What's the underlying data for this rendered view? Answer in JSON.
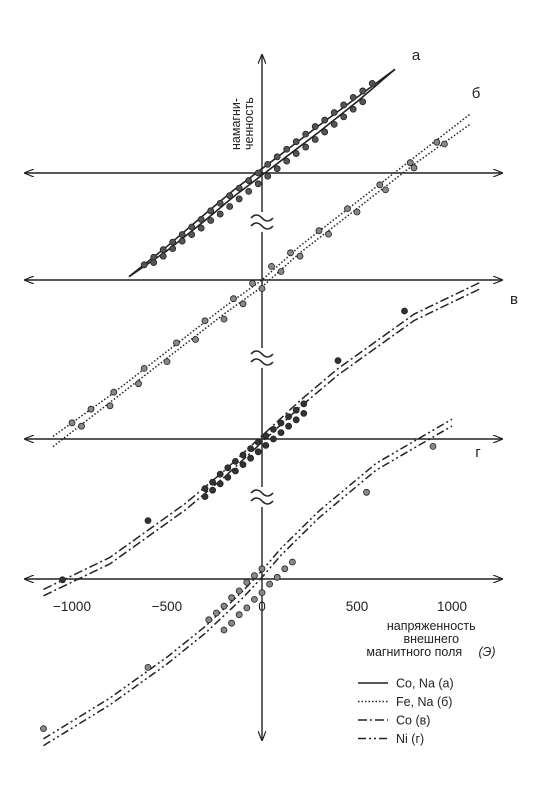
{
  "chart_data": {
    "type": "line",
    "title": "",
    "xlabel_lines": [
      "напряженность",
      "внешнего",
      "магнитного поля"
    ],
    "xlabel_unit": "(Э)",
    "ylabel_lines": [
      "намагни-",
      "ченность"
    ],
    "x_ticks": [
      {
        "value": -1000,
        "label": "−1000"
      },
      {
        "value": -500,
        "label": "−500"
      },
      {
        "value": 0,
        "label": "0"
      },
      {
        "value": 500,
        "label": "500"
      },
      {
        "value": 1000,
        "label": "1000"
      }
    ],
    "x_range": [
      -1150,
      1150
    ],
    "axis_breaks": 3,
    "legend_position": "bottom-right",
    "series": [
      {
        "name": "Co, Na (а)",
        "curve_label": "а",
        "style": "solid",
        "marker_color": "#555555",
        "branches": [
          {
            "x": [
              -700,
              -500,
              -300,
              -150,
              0,
              150,
              300,
              500,
              700
            ],
            "y": [
              -0.96,
              -0.68,
              -0.38,
              -0.16,
              0.04,
              0.24,
              0.44,
              0.7,
              0.96
            ]
          },
          {
            "x": [
              -700,
              -500,
              -300,
              -150,
              0,
              150,
              300,
              500,
              700
            ],
            "y": [
              -0.96,
              -0.72,
              -0.44,
              -0.22,
              -0.02,
              0.18,
              0.38,
              0.66,
              0.96
            ]
          }
        ],
        "markers": [
          {
            "x": [
              -620,
              -570,
              -520,
              -470,
              -420,
              -370,
              -320,
              -270,
              -220,
              -170,
              -120,
              -70,
              -20,
              30,
              80,
              130,
              180,
              230,
              280,
              330,
              380,
              430,
              480,
              530,
              580
            ],
            "y": [
              -0.85,
              -0.78,
              -0.71,
              -0.64,
              -0.57,
              -0.5,
              -0.43,
              -0.35,
              -0.28,
              -0.21,
              -0.14,
              -0.07,
              0.0,
              0.08,
              0.15,
              0.22,
              0.29,
              0.36,
              0.43,
              0.49,
              0.56,
              0.63,
              0.7,
              0.76,
              0.83
            ]
          },
          {
            "x": [
              -570,
              -520,
              -470,
              -420,
              -370,
              -320,
              -270,
              -220,
              -170,
              -120,
              -70,
              -20,
              30,
              80,
              130,
              180,
              230,
              280,
              330,
              380,
              430,
              480,
              530
            ],
            "y": [
              -0.83,
              -0.77,
              -0.7,
              -0.63,
              -0.57,
              -0.51,
              -0.44,
              -0.38,
              -0.31,
              -0.24,
              -0.17,
              -0.1,
              -0.03,
              0.04,
              0.11,
              0.18,
              0.24,
              0.31,
              0.38,
              0.45,
              0.52,
              0.59,
              0.66
            ]
          }
        ]
      },
      {
        "name": "Fe, Na (б)",
        "curve_label": "б",
        "style": "dotted",
        "marker_color": "#888888",
        "branches": [
          {
            "x": [
              -1100,
              -800,
              -500,
              -200,
              0,
              200,
              500,
              800,
              1100
            ],
            "y": [
              -0.92,
              -0.68,
              -0.42,
              -0.16,
              0.0,
              0.2,
              0.46,
              0.72,
              0.98
            ]
          },
          {
            "x": [
              -1100,
              -800,
              -500,
              -200,
              0,
              200,
              500,
              800,
              1100
            ],
            "y": [
              -0.98,
              -0.72,
              -0.46,
              -0.2,
              -0.04,
              0.16,
              0.42,
              0.68,
              0.92
            ]
          }
        ],
        "markers": [
          {
            "x": [
              -1000,
              -900,
              -780,
              -620,
              -450,
              -300,
              -150,
              -50,
              50,
              150,
              300,
              450,
              620,
              780,
              920
            ],
            "y": [
              -0.84,
              -0.76,
              -0.66,
              -0.52,
              -0.37,
              -0.24,
              -0.11,
              -0.02,
              0.08,
              0.16,
              0.29,
              0.42,
              0.56,
              0.69,
              0.81
            ]
          },
          {
            "x": [
              -950,
              -800,
              -650,
              -500,
              -350,
              -200,
              -100,
              0,
              100,
              200,
              350,
              500,
              650,
              800,
              960
            ],
            "y": [
              -0.86,
              -0.74,
              -0.61,
              -0.48,
              -0.35,
              -0.23,
              -0.14,
              -0.05,
              0.05,
              0.14,
              0.27,
              0.4,
              0.53,
              0.66,
              0.8
            ]
          }
        ]
      },
      {
        "name": "Co (в)",
        "curve_label": "в",
        "style": "dashdot",
        "marker_color": "#333333",
        "branches": [
          {
            "x": [
              -1150,
              -800,
              -400,
              -200,
              0,
              200,
              400,
              800,
              1150
            ],
            "y": [
              -0.98,
              -0.78,
              -0.44,
              -0.24,
              -0.02,
              0.2,
              0.4,
              0.74,
              0.94
            ]
          },
          {
            "x": [
              -1150,
              -800,
              -400,
              -200,
              0,
              200,
              400,
              800,
              1150
            ],
            "y": [
              -0.94,
              -0.74,
              -0.4,
              -0.2,
              0.02,
              0.24,
              0.44,
              0.78,
              0.98
            ]
          }
        ],
        "markers": [
          {
            "x": [
              -300,
              -260,
              -220,
              -180,
              -140,
              -100,
              -60,
              -20,
              20,
              60,
              100,
              140,
              180,
              220
            ],
            "y": [
              -0.31,
              -0.27,
              -0.22,
              -0.18,
              -0.14,
              -0.1,
              -0.06,
              -0.02,
              0.02,
              0.06,
              0.1,
              0.14,
              0.18,
              0.22
            ]
          },
          {
            "x": [
              -300,
              -260,
              -220,
              -180,
              -140,
              -100,
              -60,
              -20,
              20,
              60,
              100,
              140,
              180,
              220
            ],
            "y": [
              -0.36,
              -0.32,
              -0.28,
              -0.24,
              -0.2,
              -0.16,
              -0.12,
              -0.08,
              -0.04,
              0.0,
              0.04,
              0.08,
              0.12,
              0.16
            ]
          },
          {
            "x": [
              -1050,
              -600,
              400,
              750
            ],
            "y": [
              -0.88,
              -0.51,
              0.49,
              0.8
            ]
          }
        ]
      },
      {
        "name": "Ni (г)",
        "curve_label": "г",
        "style": "dashdotdot",
        "marker_color": "#888888",
        "branches": [
          {
            "x": [
              -1150,
              -800,
              -500,
              -300,
              -100,
              0,
              100,
              300,
              600,
              1000
            ],
            "y": [
              -0.94,
              -0.7,
              -0.46,
              -0.28,
              -0.07,
              0.05,
              0.18,
              0.4,
              0.68,
              0.94
            ]
          },
          {
            "x": [
              -1150,
              -800,
              -500,
              -300,
              -100,
              0,
              100,
              300,
              600,
              1000
            ],
            "y": [
              -0.98,
              -0.74,
              -0.5,
              -0.32,
              -0.11,
              0.01,
              0.14,
              0.36,
              0.64,
              0.9
            ]
          }
        ],
        "markers": [
          {
            "x": [
              -280,
              -240,
              -200,
              -160,
              -120,
              -80,
              -40,
              0
            ],
            "y": [
              -0.24,
              -0.2,
              -0.16,
              -0.11,
              -0.07,
              -0.02,
              0.02,
              0.06
            ]
          },
          {
            "x": [
              -200,
              -160,
              -120,
              -80,
              -40,
              0,
              40,
              80,
              120,
              160
            ],
            "y": [
              -0.3,
              -0.26,
              -0.21,
              -0.17,
              -0.12,
              -0.08,
              -0.03,
              0.01,
              0.06,
              0.1
            ]
          },
          {
            "x": [
              -1150,
              -600,
              550,
              900
            ],
            "y": [
              -0.88,
              -0.52,
              0.51,
              0.78
            ]
          }
        ]
      }
    ]
  }
}
